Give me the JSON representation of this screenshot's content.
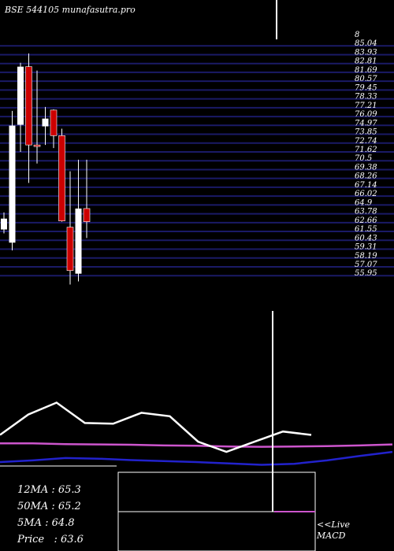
{
  "header": {
    "title": "BSE 544105 munafasutra.pro"
  },
  "info": {
    "ma12": "12MA : 65.3",
    "ma50": "50MA : 65.2",
    "ma5": "5MA : 64.8",
    "price": "Price   : 63.6"
  },
  "footer": {
    "live_label": "<<Live",
    "macd_label": "MACD"
  },
  "colors": {
    "background": "#000000",
    "grid": "#1a1a66",
    "up_candle": "#ffffff",
    "down_candle": "#cc0000",
    "price_line": "#ffffff",
    "ma_magenta": "#cc55cc",
    "ma_blue": "#2222cc"
  },
  "chart_data": {
    "type": "candlestick",
    "title": "BSE 544105",
    "y_tick_labels": [
      "8",
      "85.04",
      "83.93",
      "82.81",
      "81.69",
      "80.57",
      "79.45",
      "78.33",
      "77.21",
      "76.09",
      "74.97",
      "73.85",
      "72.74",
      "71.62",
      "70.5",
      "69.38",
      "68.26",
      "67.14",
      "66.02",
      "64.9",
      "63.78",
      "62.66",
      "61.55",
      "60.43",
      "59.31",
      "58.19",
      "57.07",
      "55.95"
    ],
    "ylim": [
      55.95,
      86.16
    ],
    "candles": [
      {
        "open": 61.5,
        "high": 63.7,
        "low": 61.0,
        "close": 62.9
      },
      {
        "open": 59.8,
        "high": 76.8,
        "low": 58.8,
        "close": 74.9
      },
      {
        "open": 75.0,
        "high": 83.0,
        "low": 71.5,
        "close": 82.5
      },
      {
        "open": 82.5,
        "high": 84.2,
        "low": 67.5,
        "close": 72.4
      },
      {
        "open": 72.4,
        "high": 82.0,
        "low": 70.0,
        "close": 72.2
      },
      {
        "open": 74.8,
        "high": 77.3,
        "low": 72.4,
        "close": 75.8
      },
      {
        "open": 76.9,
        "high": 77.0,
        "low": 72.0,
        "close": 73.6
      },
      {
        "open": 73.6,
        "high": 74.5,
        "low": 62.5,
        "close": 62.6
      },
      {
        "open": 61.8,
        "high": 69.0,
        "low": 54.4,
        "close": 56.2
      },
      {
        "open": 55.8,
        "high": 70.5,
        "low": 54.8,
        "close": 64.2
      },
      {
        "open": 64.2,
        "high": 70.5,
        "low": 60.4,
        "close": 62.5
      }
    ],
    "lower_panel": {
      "price_line": [
        56.0,
        62.0,
        65.5,
        59.5,
        59.3,
        62.5,
        61.5,
        54.0,
        51.0,
        54.0,
        57.0,
        56.0
      ],
      "ma_magenta": [
        53.5,
        53.5,
        53.3,
        53.2,
        53.1,
        52.9,
        52.8,
        52.6,
        52.5,
        52.6,
        52.7,
        52.9,
        53.2
      ],
      "ma_blue": [
        48.0,
        48.5,
        49.2,
        49.0,
        48.6,
        48.3,
        48.0,
        47.6,
        47.2,
        47.5,
        48.5,
        49.8,
        51.0
      ]
    }
  }
}
